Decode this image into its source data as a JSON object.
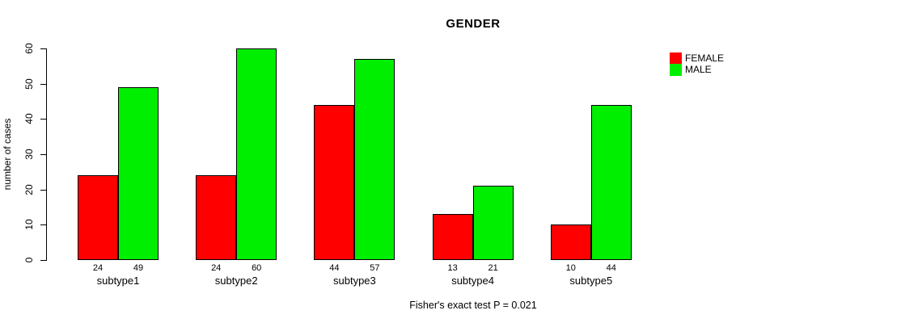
{
  "chart_data": {
    "type": "bar",
    "title": "GENDER",
    "xlabel": "",
    "ylabel": "number of cases",
    "categories": [
      "subtype1",
      "subtype2",
      "subtype3",
      "subtype4",
      "subtype5"
    ],
    "series": [
      {
        "name": "FEMALE",
        "color": "#FF0000",
        "values": [
          24,
          24,
          44,
          13,
          10
        ]
      },
      {
        "name": "MALE",
        "color": "#00EE00",
        "values": [
          49,
          60,
          57,
          21,
          44
        ]
      }
    ],
    "ylim": [
      0,
      60
    ],
    "yticks": [
      0,
      10,
      20,
      30,
      40,
      50,
      60
    ],
    "grid": false,
    "legend_position": "right",
    "show_value_labels": true,
    "annotation": "Fisher's exact test P = 0.021"
  }
}
